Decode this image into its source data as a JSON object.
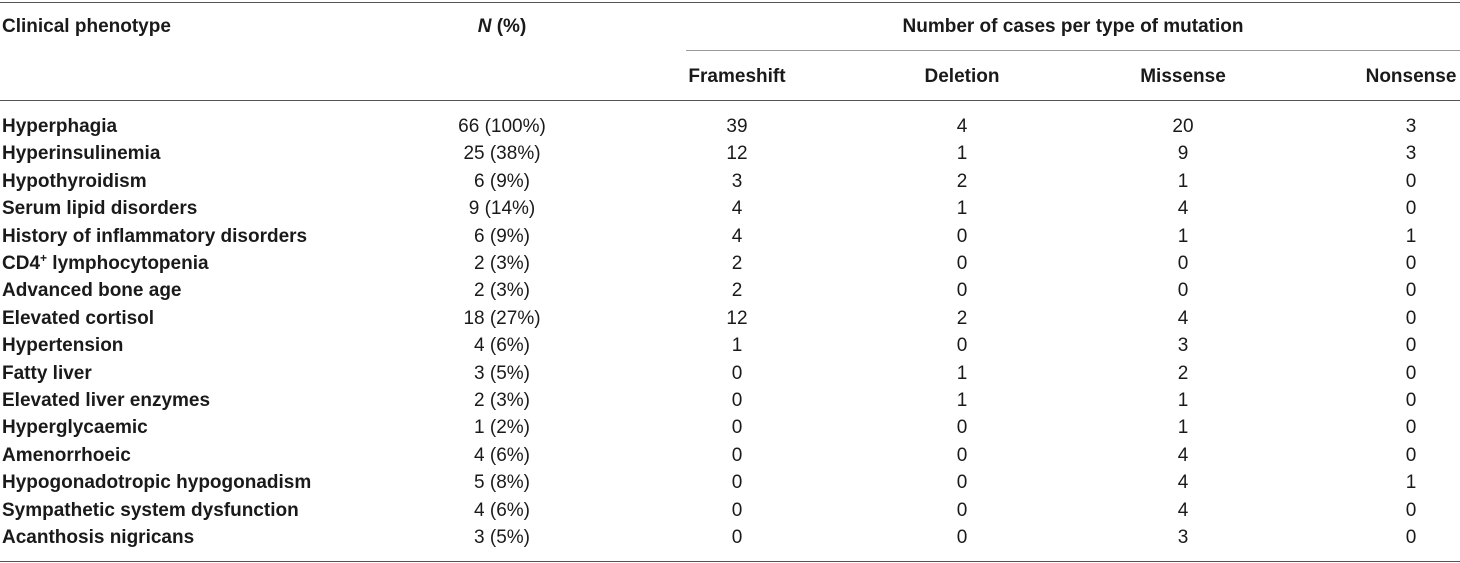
{
  "table": {
    "headers": {
      "phenotype": "Clinical phenotype",
      "n_italic": "N",
      "n_suffix": " (%)",
      "group": "Number of cases per type of mutation",
      "frameshift": "Frameshift",
      "deletion": "Deletion",
      "missense": "Missense",
      "nonsense": "Nonsense"
    },
    "rows": [
      {
        "label": "Hyperphagia",
        "sup": "",
        "label_rest": "",
        "n": "66 (100%)",
        "frameshift": "39",
        "deletion": "4",
        "missense": "20",
        "nonsense": "3"
      },
      {
        "label": "Hyperinsulinemia",
        "sup": "",
        "label_rest": "",
        "n": "25 (38%)",
        "frameshift": "12",
        "deletion": "1",
        "missense": "9",
        "nonsense": "3"
      },
      {
        "label": "Hypothyroidism",
        "sup": "",
        "label_rest": "",
        "n": "6 (9%)",
        "frameshift": "3",
        "deletion": "2",
        "missense": "1",
        "nonsense": "0"
      },
      {
        "label": "Serum lipid disorders",
        "sup": "",
        "label_rest": "",
        "n": "9 (14%)",
        "frameshift": "4",
        "deletion": "1",
        "missense": "4",
        "nonsense": "0"
      },
      {
        "label": "History of inflammatory disorders",
        "sup": "",
        "label_rest": "",
        "n": "6 (9%)",
        "frameshift": "4",
        "deletion": "0",
        "missense": "1",
        "nonsense": "1"
      },
      {
        "label": "CD4",
        "sup": "+",
        "label_rest": " lymphocytopenia",
        "n": "2 (3%)",
        "frameshift": "2",
        "deletion": "0",
        "missense": "0",
        "nonsense": "0"
      },
      {
        "label": "Advanced bone age",
        "sup": "",
        "label_rest": "",
        "n": "2 (3%)",
        "frameshift": "2",
        "deletion": "0",
        "missense": "0",
        "nonsense": "0"
      },
      {
        "label": "Elevated cortisol",
        "sup": "",
        "label_rest": "",
        "n": "18 (27%)",
        "frameshift": "12",
        "deletion": "2",
        "missense": "4",
        "nonsense": "0"
      },
      {
        "label": "Hypertension",
        "sup": "",
        "label_rest": "",
        "n": "4 (6%)",
        "frameshift": "1",
        "deletion": "0",
        "missense": "3",
        "nonsense": "0"
      },
      {
        "label": "Fatty liver",
        "sup": "",
        "label_rest": "",
        "n": "3 (5%)",
        "frameshift": "0",
        "deletion": "1",
        "missense": "2",
        "nonsense": "0"
      },
      {
        "label": "Elevated liver enzymes",
        "sup": "",
        "label_rest": "",
        "n": "2 (3%)",
        "frameshift": "0",
        "deletion": "1",
        "missense": "1",
        "nonsense": "0"
      },
      {
        "label": "Hyperglycaemic",
        "sup": "",
        "label_rest": "",
        "n": "1 (2%)",
        "frameshift": "0",
        "deletion": "0",
        "missense": "1",
        "nonsense": "0"
      },
      {
        "label": "Amenorrhoeic",
        "sup": "",
        "label_rest": "",
        "n": "4 (6%)",
        "frameshift": "0",
        "deletion": "0",
        "missense": "4",
        "nonsense": "0"
      },
      {
        "label": "Hypogonadotropic hypogonadism",
        "sup": "",
        "label_rest": "",
        "n": "5 (8%)",
        "frameshift": "0",
        "deletion": "0",
        "missense": "4",
        "nonsense": "1"
      },
      {
        "label": "Sympathetic system dysfunction",
        "sup": "",
        "label_rest": "",
        "n": "4 (6%)",
        "frameshift": "0",
        "deletion": "0",
        "missense": "4",
        "nonsense": "0"
      },
      {
        "label": "Acanthosis nigricans",
        "sup": "",
        "label_rest": "",
        "n": "3 (5%)",
        "frameshift": "0",
        "deletion": "0",
        "missense": "3",
        "nonsense": "0"
      }
    ]
  }
}
